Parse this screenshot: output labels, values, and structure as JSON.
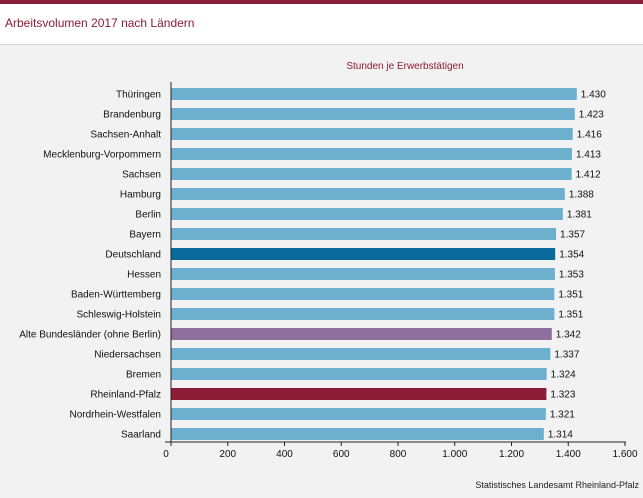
{
  "header": {
    "title": "Arbeitsvolumen 2017 nach Ländern"
  },
  "footer": {
    "source": "Statistisches Landesamt Rheinland-Pfalz"
  },
  "colors": {
    "default_bar": "#6cb0ce",
    "deutschland_bar": "#0b6a9c",
    "alte_bundeslaender_bar": "#8e6f9e",
    "rheinland_pfalz_bar": "#8c1c35",
    "accent": "#8c1c35"
  },
  "chart_data": {
    "type": "bar",
    "orientation": "horizontal",
    "title": "",
    "subtitle": "Stunden je Erwerbstätigen",
    "xlabel": "",
    "ylabel": "",
    "xlim": [
      0,
      1600
    ],
    "xticks": [
      0,
      200,
      400,
      600,
      800,
      1000,
      1200,
      1400,
      1600
    ],
    "xtick_labels": [
      "0",
      "200",
      "400",
      "600",
      "800",
      "1.000",
      "1.200",
      "1.400",
      "1.600"
    ],
    "grid": false,
    "legend": "none",
    "categories": [
      "Thüringen",
      "Brandenburg",
      "Sachsen-Anhalt",
      "Mecklenburg-Vorpommern",
      "Sachsen",
      "Hamburg",
      "Berlin",
      "Bayern",
      "Deutschland",
      "Hessen",
      "Baden-Württemberg",
      "Schleswig-Holstein",
      "Alte Bundesländer (ohne Berlin)",
      "Niedersachsen",
      "Bremen",
      "Rheinland-Pfalz",
      "Nordrhein-Westfalen",
      "Saarland"
    ],
    "values": [
      1430,
      1423,
      1416,
      1413,
      1412,
      1388,
      1381,
      1357,
      1354,
      1353,
      1351,
      1351,
      1342,
      1337,
      1324,
      1323,
      1321,
      1314
    ],
    "value_labels": [
      "1.430",
      "1.423",
      "1.416",
      "1.413",
      "1.412",
      "1.388",
      "1.381",
      "1.357",
      "1.354",
      "1.353",
      "1.351",
      "1.351",
      "1.342",
      "1.337",
      "1.324",
      "1.323",
      "1.321",
      "1.314"
    ],
    "highlighted": {
      "Deutschland": "deutschland_bar",
      "Alte Bundesländer (ohne Berlin)": "alte_bundeslaender_bar",
      "Rheinland-Pfalz": "rheinland_pfalz_bar"
    }
  }
}
